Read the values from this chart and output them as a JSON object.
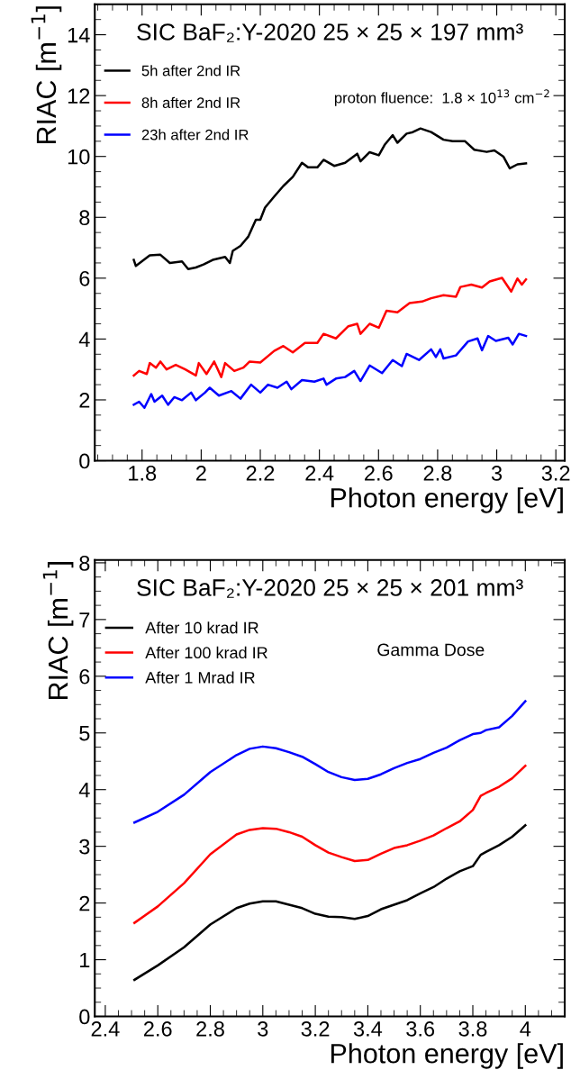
{
  "chart_data": [
    {
      "type": "line",
      "title": "SIC BaF₂:Y-2020 25 × 25 × 197 mm³",
      "xlabel": "Photon energy [eV]",
      "ylabel": "RIAC [m$^{−1}$]",
      "annotations": [
        "proton fluence:  1.8 × 10$^{13}$ cm$^{−2}$"
      ],
      "xlim": [
        1.64,
        3.23
      ],
      "ylim": [
        0,
        15
      ],
      "xticks": [
        1.8,
        2,
        2.2,
        2.4,
        2.6,
        2.8,
        3,
        3.2
      ],
      "yticks": [
        0,
        2,
        4,
        6,
        8,
        10,
        12,
        14
      ],
      "legend": "top left",
      "grid": false,
      "series": [
        {
          "name": "5h after 2nd IR",
          "color": "#000000",
          "x": [
            1.772,
            1.779,
            1.826,
            1.862,
            1.894,
            1.935,
            1.956,
            1.982,
            2.008,
            2.039,
            2.081,
            2.097,
            2.107,
            2.133,
            2.159,
            2.185,
            2.2,
            2.216,
            2.247,
            2.278,
            2.31,
            2.341,
            2.362,
            2.393,
            2.414,
            2.45,
            2.487,
            2.528,
            2.539,
            2.57,
            2.601,
            2.622,
            2.648,
            2.664,
            2.695,
            2.716,
            2.742,
            2.778,
            2.82,
            2.851,
            2.893,
            2.924,
            2.966,
            2.992,
            3.023,
            3.044,
            3.07,
            3.099
          ],
          "values": [
            6.6,
            6.4,
            6.75,
            6.77,
            6.5,
            6.55,
            6.3,
            6.35,
            6.45,
            6.6,
            6.7,
            6.5,
            6.9,
            7.06,
            7.36,
            7.92,
            7.92,
            8.32,
            8.68,
            9.03,
            9.33,
            9.79,
            9.64,
            9.64,
            9.89,
            9.69,
            9.79,
            10.09,
            9.84,
            10.14,
            10.04,
            10.4,
            10.7,
            10.45,
            10.75,
            10.8,
            10.92,
            10.8,
            10.55,
            10.5,
            10.5,
            10.22,
            10.15,
            10.2,
            9.99,
            9.61,
            9.74,
            9.77
          ]
        },
        {
          "name": "8h after 2nd IR",
          "color": "#ff0000",
          "x": [
            1.772,
            1.79,
            1.816,
            1.826,
            1.847,
            1.862,
            1.883,
            1.914,
            1.946,
            1.982,
            1.992,
            2.018,
            2.044,
            2.068,
            2.081,
            2.112,
            2.143,
            2.164,
            2.2,
            2.247,
            2.278,
            2.31,
            2.351,
            2.393,
            2.414,
            2.456,
            2.498,
            2.528,
            2.539,
            2.57,
            2.601,
            2.627,
            2.664,
            2.705,
            2.747,
            2.778,
            2.82,
            2.862,
            2.877,
            2.914,
            2.95,
            2.976,
            3.018,
            3.049,
            3.07,
            3.085,
            3.099
          ],
          "values": [
            2.8,
            2.95,
            2.85,
            3.21,
            3.06,
            3.26,
            3.0,
            3.15,
            3.0,
            2.8,
            3.21,
            2.85,
            3.26,
            2.75,
            3.21,
            2.95,
            3.06,
            3.26,
            3.23,
            3.61,
            3.77,
            3.56,
            3.87,
            3.87,
            4.17,
            4.02,
            4.42,
            4.5,
            4.17,
            4.5,
            4.37,
            4.93,
            4.88,
            5.18,
            5.23,
            5.34,
            5.44,
            5.39,
            5.71,
            5.79,
            5.69,
            5.89,
            6.01,
            5.56,
            5.99,
            5.79,
            5.96
          ]
        },
        {
          "name": "23h after 2nd IR",
          "color": "#0000ff",
          "x": [
            1.772,
            1.79,
            1.808,
            1.831,
            1.842,
            1.868,
            1.888,
            1.909,
            1.935,
            1.966,
            1.982,
            2.013,
            2.029,
            2.06,
            2.102,
            2.133,
            2.169,
            2.2,
            2.226,
            2.258,
            2.289,
            2.305,
            2.341,
            2.383,
            2.414,
            2.424,
            2.456,
            2.487,
            2.518,
            2.539,
            2.57,
            2.612,
            2.648,
            2.679,
            2.695,
            2.737,
            2.778,
            2.794,
            2.809,
            2.82,
            2.862,
            2.903,
            2.935,
            2.95,
            2.971,
            2.997,
            3.039,
            3.054,
            3.075,
            3.099
          ],
          "values": [
            1.84,
            1.94,
            1.74,
            2.19,
            1.94,
            2.14,
            1.84,
            2.09,
            1.99,
            2.24,
            1.99,
            2.24,
            2.4,
            2.14,
            2.29,
            2.04,
            2.5,
            2.24,
            2.5,
            2.4,
            2.6,
            2.35,
            2.65,
            2.6,
            2.7,
            2.5,
            2.7,
            2.75,
            2.95,
            2.62,
            3.13,
            2.88,
            3.31,
            3.11,
            3.51,
            3.31,
            3.66,
            3.41,
            3.66,
            3.36,
            3.46,
            3.92,
            4.02,
            3.63,
            4.1,
            3.94,
            4.04,
            3.82,
            4.17,
            4.1
          ]
        }
      ]
    },
    {
      "type": "line",
      "title": "SIC BaF₂:Y-2020 25 × 25 × 201 mm³",
      "xlabel": "Photon energy [eV]",
      "ylabel": "RIAC [m$^{−1}$]",
      "annotations": [
        "Gamma Dose"
      ],
      "xlim": [
        2.36,
        4.15
      ],
      "ylim": [
        0,
        8.05
      ],
      "xticks": [
        2.4,
        2.6,
        2.8,
        3,
        3.2,
        3.4,
        3.6,
        3.8,
        4
      ],
      "yticks": [
        0,
        1,
        2,
        3,
        4,
        5,
        6,
        7,
        8
      ],
      "legend": "top left",
      "grid": false,
      "x": [
        2.511,
        2.6,
        2.7,
        2.8,
        2.9,
        2.95,
        3.0,
        3.05,
        3.1,
        3.15,
        3.2,
        3.25,
        3.3,
        3.35,
        3.4,
        3.45,
        3.5,
        3.55,
        3.6,
        3.65,
        3.7,
        3.75,
        3.8,
        3.83,
        3.85,
        3.9,
        3.95,
        4.0
      ],
      "series": [
        {
          "name": "After 10 krad IR",
          "color": "#000000",
          "values": [
            0.645,
            0.9,
            1.22,
            1.62,
            1.91,
            1.99,
            2.03,
            2.03,
            1.97,
            1.91,
            1.81,
            1.76,
            1.75,
            1.72,
            1.77,
            1.89,
            1.97,
            2.05,
            2.17,
            2.28,
            2.43,
            2.56,
            2.65,
            2.85,
            2.9,
            3.02,
            3.17,
            3.37
          ]
        },
        {
          "name": "After 100 krad IR",
          "color": "#ff0000",
          "values": [
            1.65,
            1.94,
            2.35,
            2.86,
            3.21,
            3.29,
            3.32,
            3.31,
            3.25,
            3.17,
            3.02,
            2.89,
            2.81,
            2.74,
            2.76,
            2.87,
            2.97,
            3.02,
            3.1,
            3.19,
            3.32,
            3.44,
            3.64,
            3.89,
            3.94,
            4.05,
            4.2,
            4.42
          ]
        },
        {
          "name": "After 1 Mrad IR",
          "color": "#0000ff",
          "values": [
            3.42,
            3.61,
            3.91,
            4.31,
            4.61,
            4.72,
            4.76,
            4.73,
            4.66,
            4.58,
            4.45,
            4.31,
            4.22,
            4.17,
            4.19,
            4.27,
            4.38,
            4.47,
            4.54,
            4.65,
            4.74,
            4.87,
            4.98,
            5.0,
            5.05,
            5.1,
            5.3,
            5.56
          ]
        }
      ]
    }
  ]
}
